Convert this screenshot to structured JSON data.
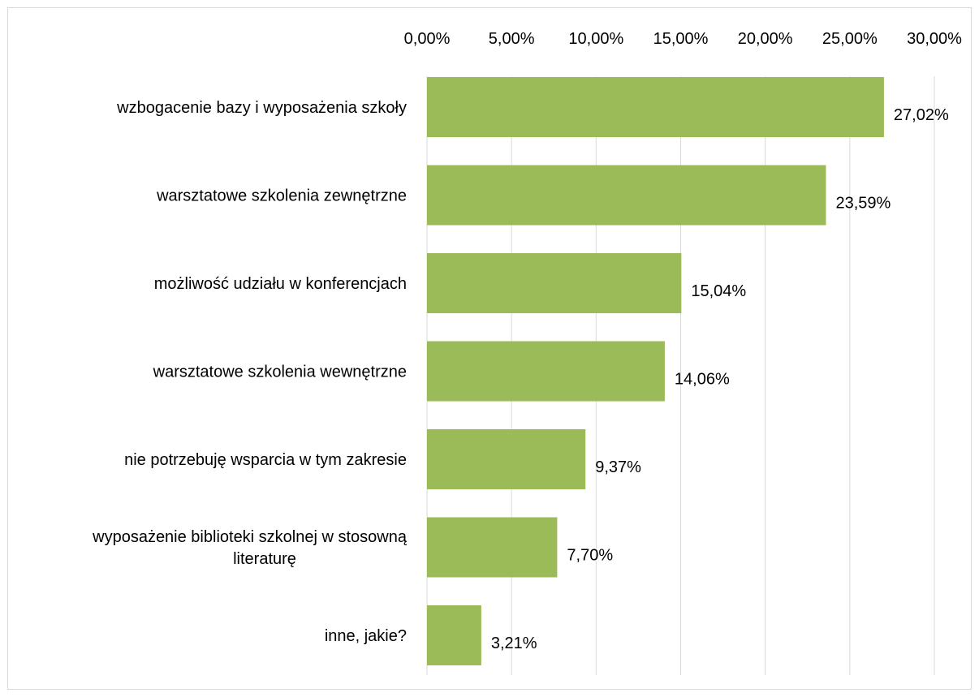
{
  "chart_data": {
    "type": "bar",
    "orientation": "horizontal",
    "categories": [
      "wzbogacenie bazy i wyposażenia szkoły",
      "warsztatowe szkolenia zewnętrzne",
      "możliwość udziału w konferencjach",
      "warsztatowe szkolenia wewnętrzne",
      "nie potrzebuję wsparcia w tym zakresie",
      "wyposażenie biblioteki szkolnej w stosowną literaturę",
      "inne, jakie?"
    ],
    "category_lines": [
      [
        "wzbogacenie bazy i wyposażenia szkoły"
      ],
      [
        "warsztatowe szkolenia zewnętrzne"
      ],
      [
        "możliwość udziału w konferencjach"
      ],
      [
        "warsztatowe szkolenia wewnętrzne"
      ],
      [
        "nie potrzebuję wsparcia w tym zakresie"
      ],
      [
        "wyposażenie biblioteki szkolnej w stosowną",
        "literaturę"
      ],
      [
        "inne, jakie?"
      ]
    ],
    "values": [
      27.02,
      23.59,
      15.04,
      14.06,
      9.37,
      7.7,
      3.21
    ],
    "value_labels": [
      "27,02%",
      "23,59%",
      "15,04%",
      "14,06%",
      "9,37%",
      "7,70%",
      "3,21%"
    ],
    "xlim": [
      0,
      30
    ],
    "xticks": [
      0,
      5,
      10,
      15,
      20,
      25,
      30
    ],
    "xtick_labels": [
      "0,00%",
      "5,00%",
      "10,00%",
      "15,00%",
      "20,00%",
      "25,00%",
      "30,00%"
    ],
    "axis_position": "top",
    "grid": true,
    "legend": false,
    "bar_color": "#9bbb59",
    "grid_color": "#d9d9d9",
    "title": "",
    "xlabel": "",
    "ylabel": ""
  }
}
